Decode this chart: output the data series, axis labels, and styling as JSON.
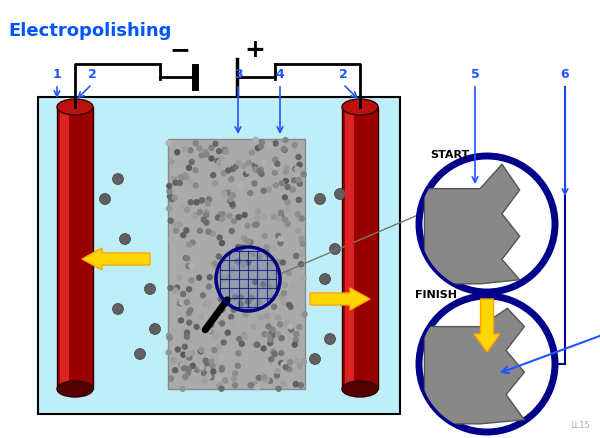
{
  "title": "Electropolishing",
  "title_color": "#0055FF",
  "title_fontsize": 13,
  "bg_color": "#FFFFFF",
  "bath_color": "#BEEEF8",
  "watermark": "LL15",
  "label_color": "#2255FF",
  "arrow_blue": "#2255FF",
  "circle_edge": "#00008B",
  "yellow": "#FFD700",
  "yellow_edge": "#FFA500",
  "red_dark": "#990000",
  "red_mid": "#CC1111",
  "red_light": "#EE3333",
  "gray_metal": "#888888",
  "particle_col": "#606060"
}
